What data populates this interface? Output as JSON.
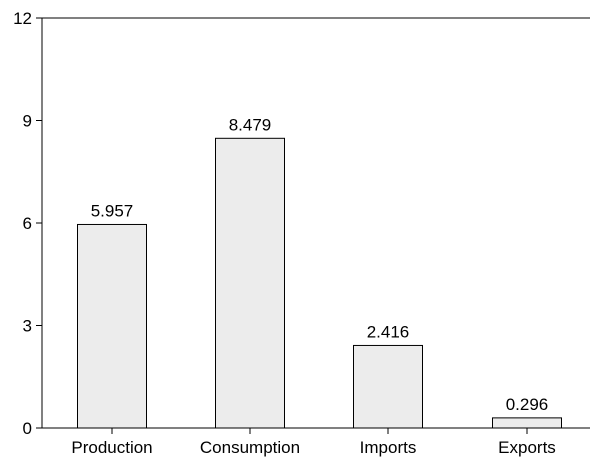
{
  "chart_data": {
    "type": "bar",
    "title": "",
    "xlabel": "",
    "ylabel": "",
    "categories": [
      "Production",
      "Consumption",
      "Imports",
      "Exports"
    ],
    "values": [
      5.957,
      8.479,
      2.416,
      0.296
    ],
    "value_labels": [
      "5.957",
      "8.479",
      "2.416",
      "0.296"
    ],
    "ylim": [
      0,
      12
    ],
    "yticks": [
      0,
      3,
      6,
      9,
      12
    ],
    "ytick_labels": [
      "0",
      "3",
      "6",
      "9",
      "12"
    ],
    "grid": false,
    "legend": "none",
    "colors": {
      "bar_fill": "#ececec",
      "bar_stroke": "#000000",
      "axis": "#000000"
    }
  }
}
